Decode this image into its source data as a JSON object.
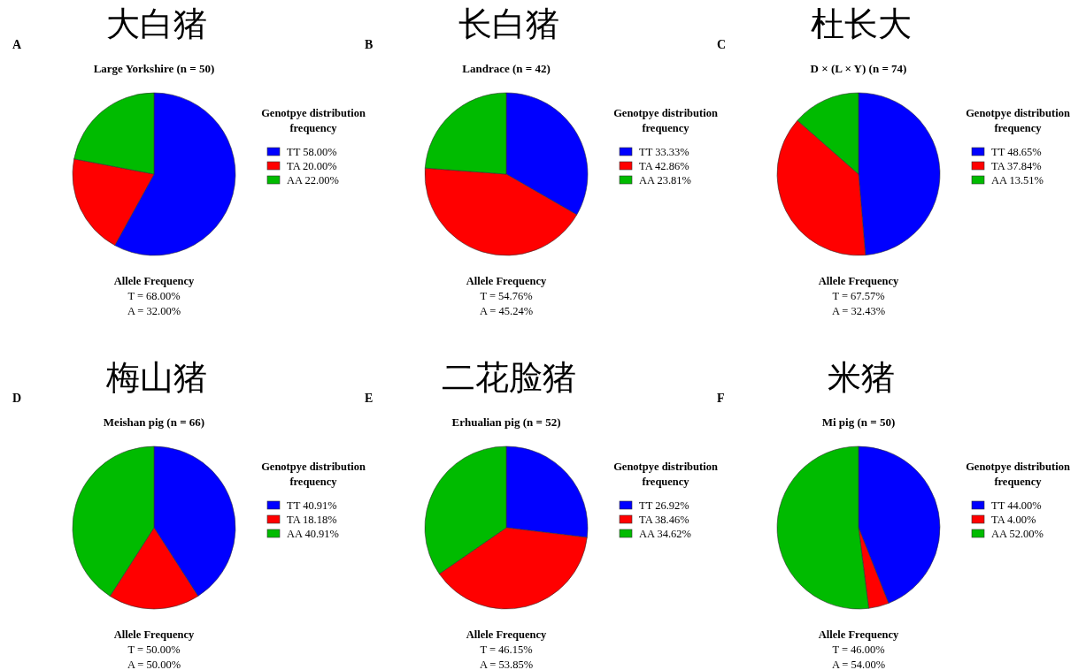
{
  "chart_data": [
    {
      "type": "pie",
      "title": "大白猪",
      "subtitle": "Large Yorkshire (n = 50)",
      "legend_title": "Genotpye distribution frequency",
      "legend": "right",
      "categories": [
        "TT",
        "TA",
        "AA"
      ],
      "values": [
        58,
        20,
        22
      ],
      "value_labels": [
        "58.00%",
        "20.00%",
        "22.00%"
      ],
      "colors": [
        "#0000ff",
        "#ff0000",
        "#00bb00"
      ],
      "annotations": [
        "A",
        "Allele Frequency",
        "T = 68.00%",
        "A = 32.00%"
      ]
    },
    {
      "type": "pie",
      "title": "长白猪",
      "subtitle": "Landrace (n = 42)",
      "legend_title": "Genotpye distribution frequency",
      "legend": "right",
      "categories": [
        "TT",
        "TA",
        "AA"
      ],
      "values": [
        33.33,
        42.86,
        23.81
      ],
      "value_labels": [
        "33.33%",
        "42.86%",
        "23.81%"
      ],
      "colors": [
        "#0000ff",
        "#ff0000",
        "#00bb00"
      ],
      "annotations": [
        "B",
        "Allele Frequency",
        "T = 54.76%",
        "A = 45.24%"
      ]
    },
    {
      "type": "pie",
      "title": "杜长大",
      "subtitle": "D × (L × Y) (n = 74)",
      "legend_title": "Genotpye distribution frequency",
      "legend": "right",
      "categories": [
        "TT",
        "TA",
        "AA"
      ],
      "values": [
        48.65,
        37.84,
        13.51
      ],
      "value_labels": [
        "48.65%",
        "37.84%",
        "13.51%"
      ],
      "colors": [
        "#0000ff",
        "#ff0000",
        "#00bb00"
      ],
      "annotations": [
        "C",
        "Allele Frequency",
        "T = 67.57%",
        "A = 32.43%"
      ]
    },
    {
      "type": "pie",
      "title": "梅山猪",
      "subtitle": "Meishan pig (n = 66)",
      "legend_title": "Genotpye distribution frequency",
      "legend": "right",
      "categories": [
        "TT",
        "TA",
        "AA"
      ],
      "values": [
        40.91,
        18.18,
        40.91
      ],
      "value_labels": [
        "40.91%",
        "18.18%",
        "40.91%"
      ],
      "colors": [
        "#0000ff",
        "#ff0000",
        "#00bb00"
      ],
      "annotations": [
        "D",
        "Allele Frequency",
        "T = 50.00%",
        "A = 50.00%"
      ]
    },
    {
      "type": "pie",
      "title": "二花脸猪",
      "subtitle": "Erhualian pig (n = 52)",
      "legend_title": "Genotpye distribution frequency",
      "legend": "right",
      "categories": [
        "TT",
        "TA",
        "AA"
      ],
      "values": [
        26.92,
        38.46,
        34.62
      ],
      "value_labels": [
        "26.92%",
        "38.46%",
        "34.62%"
      ],
      "colors": [
        "#0000ff",
        "#ff0000",
        "#00bb00"
      ],
      "annotations": [
        "E",
        "Allele Frequency",
        "T = 46.15%",
        "A = 53.85%"
      ]
    },
    {
      "type": "pie",
      "title": "米猪",
      "subtitle": "Mi pig (n = 50)",
      "legend_title": "Genotpye distribution frequency",
      "legend": "right",
      "categories": [
        "TT",
        "TA",
        "AA"
      ],
      "values": [
        44,
        4,
        52
      ],
      "value_labels": [
        "44.00%",
        "4.00%",
        "52.00%"
      ],
      "colors": [
        "#0000ff",
        "#ff0000",
        "#00bb00"
      ],
      "annotations": [
        "F",
        "Allele Frequency",
        "T = 46.00%",
        "A = 54.00%"
      ]
    }
  ]
}
